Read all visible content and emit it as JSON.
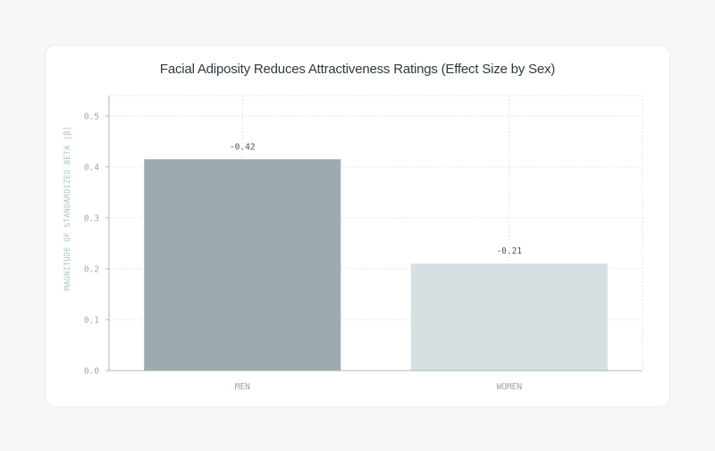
{
  "chart_data": {
    "type": "bar",
    "title": "Facial Adiposity Reduces Attractiveness Ratings (Effect Size by Sex)",
    "xlabel": "",
    "ylabel": "MAGNITUDE OF STANDARDIZED BETA |β|",
    "categories": [
      "MEN",
      "WOMEN"
    ],
    "values": [
      0.415,
      0.21
    ],
    "data_labels": [
      "-0.42",
      "-0.21"
    ],
    "bar_colors": [
      "#9daaae",
      "#d6dfe2"
    ],
    "ylim": [
      0,
      0.54
    ],
    "yticks": [
      0.0,
      0.1,
      0.2,
      0.3,
      0.4,
      0.5
    ],
    "ytick_labels": [
      "0.0",
      "0.1",
      "0.2",
      "0.3",
      "0.4",
      "0.5"
    ],
    "grid": true,
    "colors": {
      "axis": "#a9b8bc",
      "grid": "#e1e6e8"
    }
  }
}
